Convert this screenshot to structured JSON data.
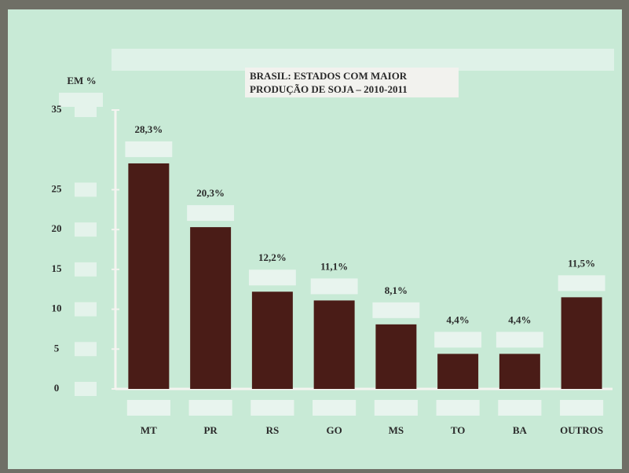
{
  "chart_data": {
    "type": "bar",
    "title": "BRASIL: ESTADOS COM MAIOR PRODUÇÃO DE SOJA – 2010-2011",
    "y_label": "EM %",
    "categories": [
      "MT",
      "PR",
      "RS",
      "GO",
      "MS",
      "TO",
      "BA",
      "OUTROS"
    ],
    "values": [
      28.3,
      20.3,
      12.2,
      11.1,
      8.1,
      4.4,
      4.4,
      11.5
    ],
    "value_labels": [
      "28,3%",
      "20,3%",
      "12,2%",
      "11,1%",
      "8,1%",
      "4,4%",
      "4,4%",
      "11,5%"
    ],
    "color": "#4a1c17",
    "ylim": [
      0,
      35
    ],
    "yticks": [
      0,
      5,
      10,
      15,
      20,
      25,
      35
    ],
    "grid": false
  }
}
